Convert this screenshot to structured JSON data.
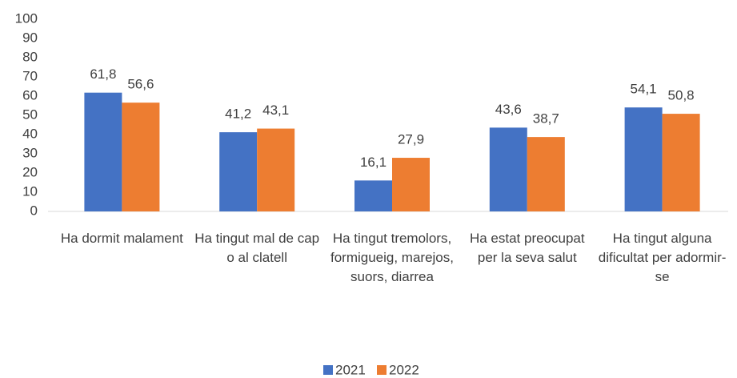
{
  "chart_data": {
    "type": "bar",
    "categories": [
      "Ha dormit malament",
      "Ha tingut mal de cap o al clatell",
      "Ha tingut tremolors, formigueig, marejos, suors, diarrea",
      "Ha estat preocupat per la seva salut",
      "Ha tingut alguna dificultat per adormir-se"
    ],
    "series": [
      {
        "name": "2021",
        "color": "#4472c4",
        "values": [
          61.8,
          41.2,
          16.1,
          43.6,
          54.1
        ],
        "value_labels": [
          "61,8",
          "41,2",
          "16,1",
          "43,6",
          "54,1"
        ]
      },
      {
        "name": "2022",
        "color": "#ed7d31",
        "values": [
          56.6,
          43.1,
          27.9,
          38.7,
          50.8
        ],
        "value_labels": [
          "56,6",
          "43,1",
          "27,9",
          "38,7",
          "50,8"
        ]
      }
    ],
    "ylim": [
      0,
      100
    ],
    "yticks": [
      0,
      10,
      20,
      30,
      40,
      50,
      60,
      70,
      80,
      90,
      100
    ],
    "grid": false,
    "legend": "bottom"
  }
}
